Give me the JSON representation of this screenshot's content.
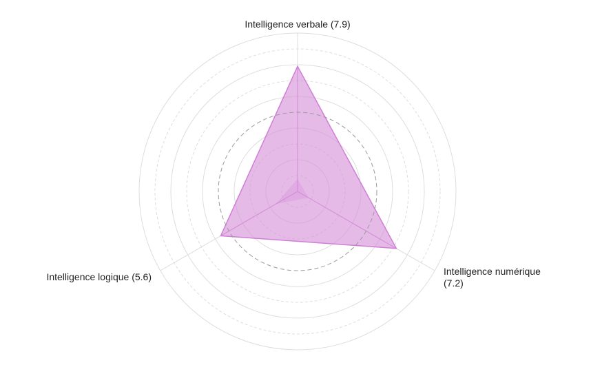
{
  "chart_data": {
    "type": "radar",
    "axes": [
      {
        "label": "Intelligence verbale (7.9)",
        "value": 7.9
      },
      {
        "label": "Intelligence numérique (7.2)",
        "value": 7.2
      },
      {
        "label": "Intelligence logique (5.6)",
        "value": 5.6
      }
    ],
    "inner_ring_values": [
      0.8,
      0.8,
      1.6
    ],
    "r_range": [
      0,
      10
    ],
    "reference_ring": 5,
    "grid": true,
    "colors": {
      "fill": "#d78fd9",
      "stroke": "#cf7fd6",
      "grid": "#dddddd",
      "reference": "#999999"
    }
  }
}
